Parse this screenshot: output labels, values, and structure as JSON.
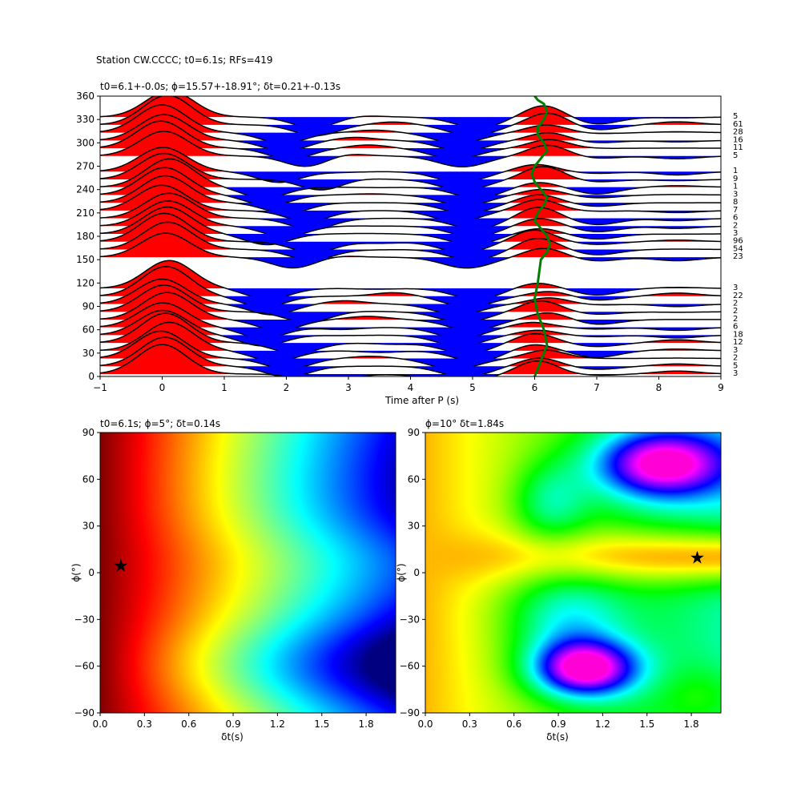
{
  "figure_title": "Station CW.CCCC; t0=6.1s; RFs=419",
  "chart_data": [
    {
      "type": "line",
      "title": "t0=6.1+-0.0s; ϕ=15.57+-18.91°; δt=0.21+-0.13s",
      "xlabel": "Time after P (s)",
      "ylabel": "",
      "xlim": [
        -1,
        9
      ],
      "ylim": [
        0,
        360
      ],
      "xticks": [
        "−1",
        "0",
        "1",
        "2",
        "3",
        "4",
        "5",
        "6",
        "7",
        "8",
        "9"
      ],
      "yticks": [
        "0",
        "30",
        "60",
        "90",
        "120",
        "150",
        "180",
        "210",
        "240",
        "270",
        "300",
        "330",
        "360"
      ],
      "positive_fill": "#ff0000",
      "negative_fill": "#0000ff",
      "trace_color": "#000000",
      "bins": [
        {
          "baz": 0,
          "count": "3"
        },
        {
          "baz": 10,
          "count": "5"
        },
        {
          "baz": 20,
          "count": "2"
        },
        {
          "baz": 30,
          "count": "3"
        },
        {
          "baz": 40,
          "count": "12"
        },
        {
          "baz": 50,
          "count": "18"
        },
        {
          "baz": 60,
          "count": "6"
        },
        {
          "baz": 70,
          "count": "2"
        },
        {
          "baz": 80,
          "count": "2"
        },
        {
          "baz": 90,
          "count": "2"
        },
        {
          "baz": 100,
          "count": "22"
        },
        {
          "baz": 110,
          "count": "3"
        },
        {
          "baz": 150,
          "count": "23"
        },
        {
          "baz": 160,
          "count": "54"
        },
        {
          "baz": 170,
          "count": "96"
        },
        {
          "baz": 180,
          "count": "3"
        },
        {
          "baz": 190,
          "count": "2"
        },
        {
          "baz": 200,
          "count": "6"
        },
        {
          "baz": 210,
          "count": "7"
        },
        {
          "baz": 220,
          "count": "8"
        },
        {
          "baz": 230,
          "count": "3"
        },
        {
          "baz": 240,
          "count": "1"
        },
        {
          "baz": 250,
          "count": "9"
        },
        {
          "baz": 260,
          "count": "1"
        },
        {
          "baz": 280,
          "count": "5"
        },
        {
          "baz": 290,
          "count": "11"
        },
        {
          "baz": 300,
          "count": "16"
        },
        {
          "baz": 310,
          "count": "28"
        },
        {
          "baz": 320,
          "count": "61"
        },
        {
          "baz": 330,
          "count": "5"
        }
      ],
      "series": [
        {
          "name": "",
          "color": "#008000",
          "x": [
            6.0,
            6.1,
            6.2,
            6.15,
            6.05,
            6.0,
            6.05,
            6.1,
            6.2,
            6.25,
            6.2,
            6.1,
            6.0,
            6.05,
            6.15,
            6.2,
            6.1,
            6.0,
            5.95,
            6.0,
            6.1,
            6.2,
            6.15,
            6.05,
            6.05,
            6.15,
            6.2,
            6.15,
            6.05,
            6.0
          ],
          "y": [
            0,
            20,
            40,
            60,
            80,
            100,
            120,
            150,
            160,
            170,
            180,
            190,
            200,
            210,
            220,
            230,
            240,
            250,
            260,
            270,
            280,
            290,
            300,
            310,
            320,
            330,
            340,
            350,
            355,
            360
          ]
        }
      ]
    },
    {
      "type": "heatmap",
      "title": "t0=6.1s; ϕ=5°; δt=0.14s",
      "xlabel": "δt(s)",
      "ylabel": "ϕ(°)",
      "xlim": [
        0.0,
        2.0
      ],
      "ylim": [
        -90,
        90
      ],
      "xticks": [
        "0.0",
        "0.3",
        "0.6",
        "0.9",
        "1.2",
        "1.5",
        "1.8"
      ],
      "yticks": [
        "−90",
        "−60",
        "−30",
        "0",
        "30",
        "60",
        "90"
      ],
      "colormap": "jet",
      "best": {
        "dt": 0.14,
        "phi": 5
      }
    },
    {
      "type": "heatmap",
      "title": "ϕ=10° δt=1.84s",
      "xlabel": "δt(s)",
      "ylabel": "ϕ(°)",
      "xlim": [
        0.0,
        2.0
      ],
      "ylim": [
        -90,
        90
      ],
      "xticks": [
        "0.0",
        "0.3",
        "0.6",
        "0.9",
        "1.2",
        "1.5",
        "1.8"
      ],
      "yticks": [
        "−90",
        "−60",
        "−30",
        "0",
        "30",
        "60",
        "90"
      ],
      "colormap": "hsv",
      "best": {
        "dt": 1.84,
        "phi": 10
      }
    }
  ]
}
